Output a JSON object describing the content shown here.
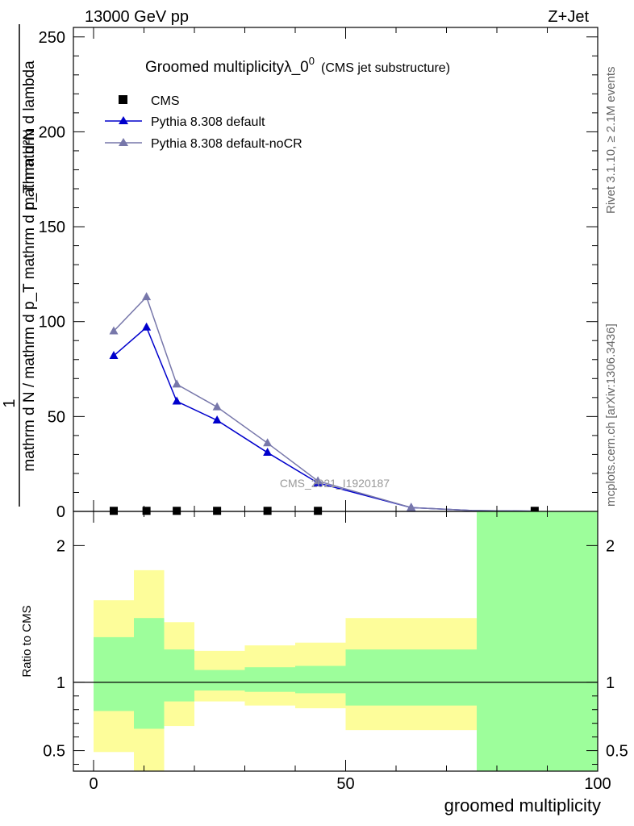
{
  "header": {
    "left": "13000 GeV pp",
    "right": "Z+Jet"
  },
  "side_text": {
    "rivet": "Rivet 3.1.10, ≥ 2.1M events",
    "mcplots": "mcplots.cern.ch [arXiv:1306.3436]"
  },
  "watermark": "CMS_2021_I1920187",
  "chart_data": {
    "type": "line",
    "title_main": "Groomed multiplicityλ_0",
    "title_sup": "0",
    "title_note": "(CMS jet substructure)",
    "ylabel_num": "mathrm d²N",
    "ylabel_den": "mathrm d N / mathrm d p_T mathrm d p_T mathrm d lambda",
    "ylabel_one": "1",
    "xlabel": "groomed multiplicity",
    "ratio_ylabel": "Ratio to CMS",
    "xlim": [
      -4,
      100
    ],
    "ylim": [
      0,
      255
    ],
    "ratio_ylim": [
      0.35,
      2.25
    ],
    "x_ticks": [
      "0",
      "50",
      "100"
    ],
    "y_ticks": [
      "0",
      "50",
      "100",
      "150",
      "200",
      "250"
    ],
    "ratio_ticks": [
      "0.5",
      "1",
      "2"
    ],
    "colors": {
      "cms": "#000000",
      "default": "#0000cc",
      "nocr": "#7777aa",
      "band_inner": "#9dfe9b",
      "band_outer": "#fdfd9a"
    },
    "legend": [
      {
        "label": "CMS",
        "marker": "square"
      },
      {
        "label": "Pythia 8.308 default",
        "marker": "triangle"
      },
      {
        "label": "Pythia 8.308 default-noCR",
        "marker": "triangle"
      }
    ],
    "series": [
      {
        "name": "CMS",
        "x": [
          4,
          10.5,
          16.5,
          24.5,
          34.5,
          44.5,
          87.5
        ],
        "y": [
          0.3,
          0.3,
          0.3,
          0.3,
          0.3,
          0.3,
          0.3
        ]
      },
      {
        "name": "Pythia 8.308 default",
        "x": [
          4,
          10.5,
          16.5,
          24.5,
          34.5,
          44.5,
          63,
          75,
          87.5
        ],
        "y": [
          82,
          97,
          58,
          48,
          31,
          15,
          2,
          0.5,
          0.1
        ]
      },
      {
        "name": "Pythia 8.308 default-noCR",
        "x": [
          4,
          10.5,
          16.5,
          24.5,
          34.5,
          44.5,
          63,
          75,
          87.5
        ],
        "y": [
          95,
          113,
          67,
          55,
          36,
          16,
          2,
          0.5,
          0.1
        ]
      }
    ],
    "ratio_bands": [
      {
        "x0": 0,
        "x1": 8,
        "inner": [
          0.79,
          1.33
        ],
        "outer": [
          0.49,
          1.6
        ]
      },
      {
        "x0": 8,
        "x1": 14,
        "inner": [
          0.66,
          1.47
        ],
        "outer": [
          0.3,
          1.82
        ]
      },
      {
        "x0": 14,
        "x1": 20,
        "inner": [
          0.86,
          1.24
        ],
        "outer": [
          0.68,
          1.44
        ]
      },
      {
        "x0": 20,
        "x1": 30,
        "inner": [
          0.94,
          1.09
        ],
        "outer": [
          0.86,
          1.23
        ]
      },
      {
        "x0": 30,
        "x1": 40,
        "inner": [
          0.93,
          1.11
        ],
        "outer": [
          0.83,
          1.27
        ]
      },
      {
        "x0": 40,
        "x1": 50,
        "inner": [
          0.92,
          1.12
        ],
        "outer": [
          0.81,
          1.29
        ]
      },
      {
        "x0": 50,
        "x1": 76,
        "inner": [
          0.83,
          1.24
        ],
        "outer": [
          0.65,
          1.47
        ]
      },
      {
        "x0": 76,
        "x1": 100,
        "inner": [
          0.3,
          2.4
        ],
        "outer": [
          0.3,
          2.4
        ]
      }
    ]
  }
}
